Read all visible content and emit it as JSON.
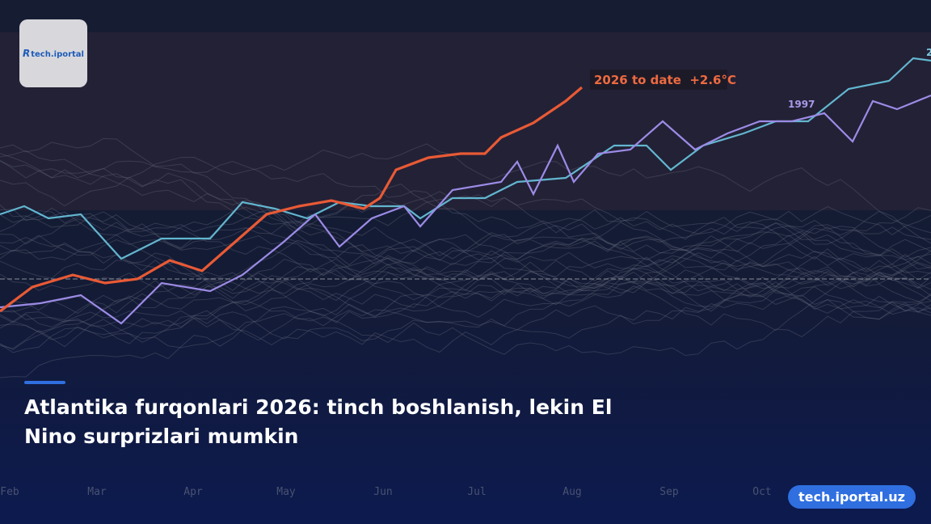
{
  "logo": {
    "text": "tech.iportal"
  },
  "background_chart": {
    "annotations": {
      "current": "2026 to date  +2.6°C",
      "year": "1997",
      "edge": "2"
    },
    "months": [
      "Feb",
      "Mar",
      "Apr",
      "May",
      "Jun",
      "Jul",
      "Aug",
      "Sep",
      "Oct"
    ]
  },
  "headline": "Atlantika furqonlari 2026: tinch boshlanish, lekin El Nino surprizlari mumkin",
  "badge": "tech.iportal.uz"
}
